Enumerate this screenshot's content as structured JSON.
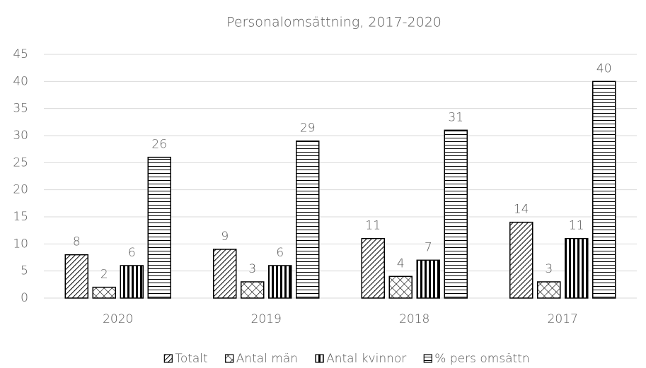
{
  "chart_data": {
    "type": "bar",
    "title": "Personalomsättning, 2017-2020",
    "categories": [
      "2020",
      "2019",
      "2018",
      "2017"
    ],
    "series": [
      {
        "name": "Totalt",
        "color": "#000000",
        "pattern": "diagonal",
        "values": [
          8,
          9,
          11,
          14
        ]
      },
      {
        "name": "Antal män",
        "color": "#000000",
        "pattern": "cross",
        "values": [
          2,
          3,
          4,
          3
        ]
      },
      {
        "name": "Antal kvinnor",
        "color": "#000000",
        "pattern": "vertical",
        "values": [
          6,
          6,
          7,
          11
        ]
      },
      {
        "name": "% pers omsättn",
        "color": "#000000",
        "pattern": "horizontal",
        "values": [
          26,
          29,
          31,
          40
        ]
      }
    ],
    "ylim": [
      0,
      45
    ],
    "yticks": [
      0,
      5,
      10,
      15,
      20,
      25,
      30,
      35,
      40,
      45
    ],
    "grid": true,
    "legend": "bottom"
  }
}
